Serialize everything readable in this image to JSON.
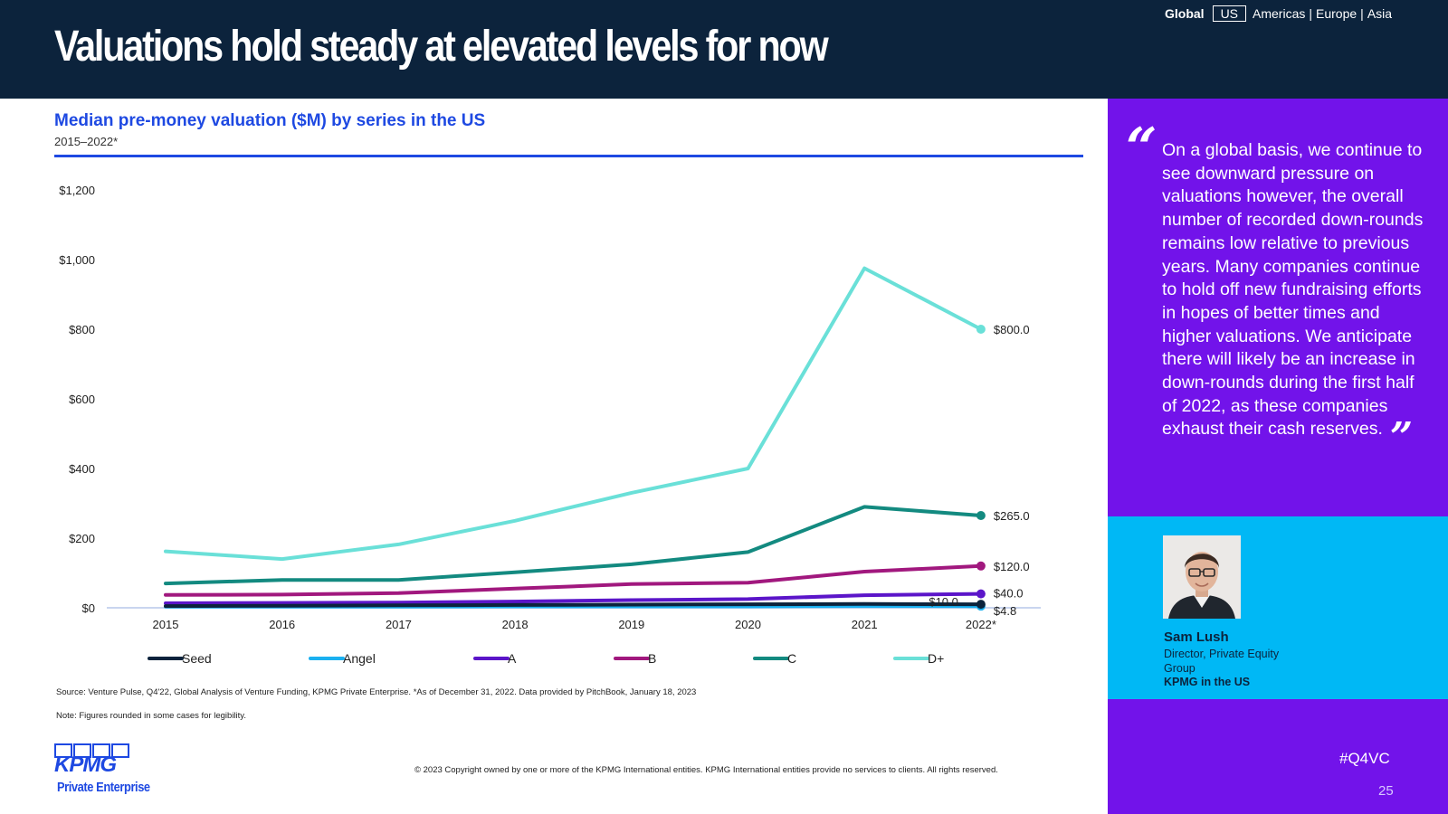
{
  "header": {
    "title": "Valuations hold steady at elevated levels for now",
    "nav": {
      "global": "Global",
      "us": "US",
      "americas": "Americas",
      "europe": "Europe",
      "asia": "Asia",
      "separator": "|"
    }
  },
  "chart_data": {
    "type": "line",
    "title": "Median pre-money valuation ($M) by series in the US",
    "subtitle": "2015–2022*",
    "xlabel": "",
    "ylabel": "",
    "categories": [
      "2015",
      "2016",
      "2017",
      "2018",
      "2019",
      "2020",
      "2021",
      "2022*"
    ],
    "ylim": [
      0,
      1200
    ],
    "yticks": [
      0,
      200,
      400,
      600,
      800,
      1000,
      1200
    ],
    "ytick_labels": [
      "$0",
      "$200",
      "$400",
      "$600",
      "$800",
      "$1,000",
      "$1,200"
    ],
    "grid": false,
    "legend_position": "bottom",
    "series": [
      {
        "name": "Seed",
        "color": "#0c233c",
        "values": [
          5,
          6,
          7,
          8,
          9,
          10,
          11,
          10
        ],
        "end_label": "$10.0"
      },
      {
        "name": "Angel",
        "color": "#1ab0f0",
        "values": [
          3,
          3,
          3,
          4,
          4,
          4,
          5,
          4.8
        ],
        "end_label": "$4.8"
      },
      {
        "name": "A",
        "color": "#5b15c9",
        "values": [
          13,
          14,
          15,
          18,
          22,
          25,
          36,
          40
        ],
        "end_label": "$40.0"
      },
      {
        "name": "B",
        "color": "#a1187e",
        "values": [
          37,
          38,
          42,
          55,
          68,
          72,
          104,
          120
        ],
        "end_label": "$120.0"
      },
      {
        "name": "C",
        "color": "#138a80",
        "values": [
          70,
          80,
          80,
          102,
          125,
          160,
          290,
          265
        ],
        "end_label": "$265.0"
      },
      {
        "name": "D+",
        "color": "#6ae0d8",
        "values": [
          162,
          140,
          182,
          250,
          330,
          400,
          975,
          800
        ],
        "end_label": "$800.0"
      }
    ]
  },
  "footer": {
    "source": "Source: Venture Pulse, Q4'22, Global Analysis of Venture Funding, KPMG Private Enterprise. *As of December 31, 2022. Data provided by PitchBook, January 18, 2023",
    "note": "Note: Figures rounded in some cases for legibility.",
    "copyright": "© 2023 Copyright owned by one or more of the KPMG International entities. KPMG International entities provide no services to clients. All rights reserved.",
    "logo_word": "KPMG",
    "logo_sub": "Private Enterprise"
  },
  "quote": {
    "open_mark": "“",
    "close_mark": "”",
    "text": "On a global basis, we continue to see downward pressure on valuations however, the overall number of recorded down-rounds remains low relative to previous years. Many companies continue to hold off new fundraising efforts in hopes of better times and higher valuations.  We anticipate there will likely be an increase in down-rounds during the first half of 2022, as these companies exhaust their cash reserves."
  },
  "person": {
    "name": "Sam Lush",
    "role": "Director, Private Equity Group",
    "org": "KPMG in the US"
  },
  "hashtag": "#Q4VC",
  "page_number": "25",
  "colors": {
    "header_bg": "#0c233c",
    "accent_blue": "#1e49e2",
    "side_purple": "#7213ea",
    "side_cyan": "#00b8f5"
  }
}
